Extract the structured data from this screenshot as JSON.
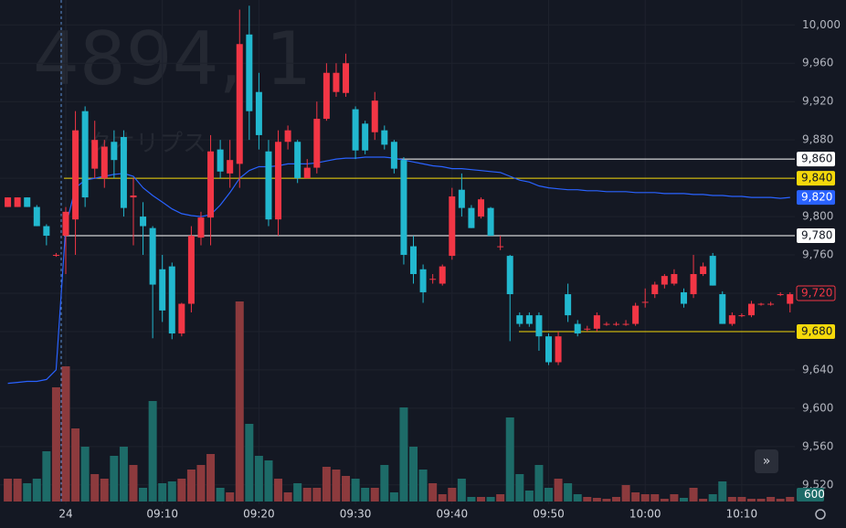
{
  "chart_data": {
    "type": "candlestick",
    "title": "4894, 1",
    "subtitle": "クオリプス",
    "categories": [
      null,
      null,
      null,
      null,
      null,
      null,
      "24",
      null,
      null,
      null,
      null,
      null,
      null,
      null,
      null,
      null,
      "09:10",
      null,
      null,
      null,
      null,
      null,
      null,
      null,
      null,
      null,
      "09:20",
      null,
      null,
      null,
      null,
      null,
      null,
      null,
      null,
      null,
      "09:30",
      null,
      null,
      null,
      null,
      null,
      null,
      null,
      null,
      null,
      "09:40",
      null,
      null,
      null,
      null,
      null,
      null,
      null,
      null,
      null,
      "09:50",
      null,
      null,
      null,
      null,
      null,
      null,
      null,
      null,
      null,
      "10:00",
      null,
      null,
      null,
      null,
      null,
      null,
      null,
      null,
      null,
      "10:10",
      null,
      null,
      null,
      null,
      null
    ],
    "open": [
      9810,
      9810,
      9820,
      9810,
      9790,
      9760,
      9780,
      9797,
      9910,
      9850,
      9840,
      9878,
      9883,
      9820,
      9800,
      9788,
      9745,
      9748,
      9678,
      9709,
      9778,
      9799,
      9870,
      9845,
      9855,
      9990,
      9930,
      9868,
      9797,
      9878,
      9878,
      9840,
      9851,
      9902,
      9930,
      9929,
      9912,
      9897,
      9888,
      9890,
      9878,
      9859,
      9769,
      9745,
      9735,
      9730,
      9759,
      9828,
      9809,
      9800,
      9809,
      9769,
      9759,
      9697,
      9697,
      9697,
      9675,
      9648,
      9719,
      9688,
      9683,
      9683,
      9688,
      9688,
      9688,
      9688,
      9711,
      9719,
      9729,
      9730,
      9721,
      9719,
      9740,
      9759,
      9719,
      9688,
      9697,
      9697,
      9709,
      9709,
      9719,
      9709
    ],
    "high": [
      9820,
      9820,
      9820,
      9812,
      9792,
      9762,
      9810,
      9910,
      9915,
      9900,
      9880,
      9890,
      9890,
      9840,
      9815,
      9790,
      9760,
      9752,
      9710,
      9790,
      9805,
      9885,
      9880,
      9880,
      10016,
      10020,
      9950,
      9880,
      9890,
      9895,
      9880,
      9860,
      9920,
      9960,
      9960,
      9970,
      9915,
      9900,
      9930,
      9895,
      9880,
      9862,
      9780,
      9750,
      9740,
      9750,
      9830,
      9845,
      9812,
      9820,
      9810,
      9780,
      9760,
      9700,
      9700,
      9700,
      9678,
      9680,
      9730,
      9692,
      9686,
      9700,
      9690,
      9690,
      9692,
      9710,
      9725,
      9732,
      9740,
      9745,
      9725,
      9760,
      9752,
      9762,
      9722,
      9700,
      9699,
      9712,
      9710,
      9711,
      9721,
      9721
    ],
    "low": [
      9810,
      9810,
      9810,
      9790,
      9770,
      9758,
      9740,
      9760,
      9810,
      9840,
      9830,
      9840,
      9800,
      9770,
      9760,
      9673,
      9690,
      9672,
      9675,
      9700,
      9770,
      9770,
      9840,
      9830,
      9830,
      9880,
      9870,
      9790,
      9780,
      9870,
      9835,
      9840,
      9845,
      9900,
      9925,
      9925,
      9860,
      9865,
      9880,
      9870,
      9845,
      9750,
      9730,
      9710,
      9730,
      9728,
      9755,
      9800,
      9788,
      9798,
      9780,
      9765,
      9670,
      9685,
      9685,
      9660,
      9645,
      9645,
      9690,
      9675,
      9680,
      9680,
      9686,
      9686,
      9686,
      9686,
      9705,
      9715,
      9725,
      9728,
      9705,
      9715,
      9738,
      9728,
      9688,
      9686,
      9695,
      9695,
      9707,
      9707,
      9717,
      9700
    ],
    "close": [
      9820,
      9820,
      9810,
      9790,
      9780,
      9760,
      9805,
      9890,
      9820,
      9880,
      9873,
      9859,
      9809,
      9822,
      9790,
      9729,
      9702,
      9678,
      9709,
      9780,
      9799,
      9868,
      9847,
      9859,
      9980,
      9910,
      9885,
      9797,
      9878,
      9890,
      9840,
      9851,
      9902,
      9950,
      9950,
      9960,
      9869,
      9869,
      9921,
      9875,
      9850,
      9760,
      9740,
      9721,
      9735,
      9748,
      9821,
      9809,
      9788,
      9818,
      9780,
      9769,
      9719,
      9688,
      9688,
      9675,
      9648,
      9675,
      9697,
      9678,
      9683,
      9697,
      9688,
      9688,
      9688,
      9707,
      9711,
      9729,
      9738,
      9740,
      9709,
      9740,
      9748,
      9728,
      9688,
      9697,
      9697,
      9709,
      9709,
      9709,
      9719,
      9719
    ],
    "volume": [
      3000,
      3000,
      2400,
      3000,
      6600,
      15000,
      17760,
      9600,
      7200,
      3600,
      3000,
      6000,
      7200,
      4800,
      1800,
      13200,
      2400,
      2640,
      3000,
      4200,
      4800,
      6240,
      1800,
      1200,
      26280,
      10200,
      6000,
      5400,
      3000,
      1200,
      2400,
      1800,
      1800,
      4560,
      4200,
      3360,
      3000,
      1800,
      1800,
      4800,
      1200,
      12360,
      7200,
      4200,
      2400,
      960,
      1800,
      3000,
      600,
      600,
      600,
      960,
      11040,
      3600,
      1440,
      4800,
      1800,
      3000,
      2400,
      960,
      600,
      480,
      360,
      600,
      2160,
      1200,
      960,
      960,
      360,
      960,
      480,
      1800,
      360,
      960,
      2640,
      600,
      600,
      360,
      360,
      600,
      360,
      600
    ],
    "vwap": [
      9626,
      9627,
      9628,
      9628,
      9630,
      9640,
      9790,
      9830,
      9838,
      9840,
      9842,
      9844,
      9845,
      9842,
      9830,
      9822,
      9815,
      9808,
      9803,
      9801,
      9800,
      9802,
      9812,
      9825,
      9840,
      9848,
      9852,
      9852,
      9853,
      9855,
      9855,
      9855,
      9856,
      9858,
      9860,
      9861,
      9861,
      9862,
      9862,
      9862,
      9861,
      9859,
      9857,
      9855,
      9853,
      9852,
      9850,
      9850,
      9849,
      9848,
      9847,
      9846,
      9842,
      9838,
      9836,
      9832,
      9830,
      9829,
      9828,
      9828,
      9827,
      9827,
      9826,
      9826,
      9826,
      9825,
      9825,
      9825,
      9824,
      9824,
      9824,
      9823,
      9823,
      9822,
      9822,
      9821,
      9821,
      9820,
      9820,
      9820,
      9819,
      9820
    ],
    "up_color": "#f23645",
    "down_color": "#22b8cf",
    "up_volume_color": "#8c3a3d",
    "down_volume_color": "#1d6b68",
    "vwap_color": "#2962ff",
    "ylim": [
      9475,
      10026
    ],
    "yticks": [
      {
        "value": 9520,
        "label": "9,520"
      },
      {
        "value": 9560,
        "label": "9,560"
      },
      {
        "value": 9600,
        "label": "9,600"
      },
      {
        "value": 9640,
        "label": "9,640"
      },
      {
        "value": 9680,
        "label": "9,680"
      },
      {
        "value": 9720,
        "label": "9,720"
      },
      {
        "value": 9760,
        "label": "9,760"
      },
      {
        "value": 9800,
        "label": "9,800"
      },
      {
        "value": 9840,
        "label": "9,840"
      },
      {
        "value": 9880,
        "label": "9,880"
      },
      {
        "value": 9920,
        "label": "9,920"
      },
      {
        "value": 9960,
        "label": "9,960"
      },
      {
        "value": 10000,
        "label": "10,000"
      }
    ],
    "grid": true,
    "price_lines": [
      {
        "value": 9860,
        "label": "9,860",
        "color": "#ffffff"
      },
      {
        "value": 9840,
        "label": "9,840",
        "color": "#f5d90a"
      },
      {
        "value": 9780,
        "label": "9,780",
        "color": "#ffffff"
      },
      {
        "value": 9680,
        "label": "9,680",
        "color": "#f5d90a"
      }
    ],
    "vwap_label": {
      "value": 9820,
      "label": "9,820"
    },
    "last_price": {
      "value": 9720,
      "label": "9,720"
    }
  }
}
